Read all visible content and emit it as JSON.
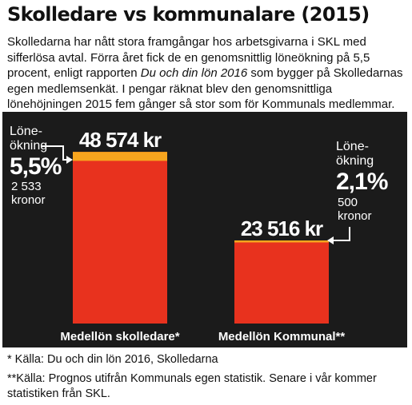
{
  "title": "Skolledare vs kommunalare (2015)",
  "intro": {
    "p1": "Skolledarna har nått stora framgångar hos arbetsgivarna i SKL med sifferlösa avtal. Förra året fick de en genomsnittlig löneökning på 5,5 procent, enligt rapporten ",
    "report": "Du och din lön 2016",
    "p2": " som bygger på Skolledarnas egen medlemsenkät. I pengar räknat blev den genomsnittliga lönehöjningen 2015 fem gånger så stor som för Kommunals medlemmar."
  },
  "colors": {
    "background": "#1b1b1b",
    "bar": "#e8321e",
    "increase": "#f7a51e",
    "text_on_chart": "#ffffff"
  },
  "chart_data": {
    "type": "bar",
    "categories": [
      "Medellön skolledare*",
      "Medellön Kommunal**"
    ],
    "values": [
      48574,
      23516
    ],
    "value_labels": [
      "48 574 kr",
      "23 516 kr"
    ],
    "increase_values": [
      2533,
      500
    ],
    "annotations": [
      {
        "heading_line1": "Löne-",
        "heading_line2": "ökning",
        "percent": "5,5%",
        "amount": "2 533",
        "unit": "kronor"
      },
      {
        "heading_line1": "Löne-",
        "heading_line2": "ökning",
        "percent": "2,1%",
        "amount": "500",
        "unit": "kronor"
      }
    ],
    "ylim": [
      0,
      52000
    ]
  },
  "footnotes": {
    "note1": "* Källa: Du och din lön 2016, Skolledarna",
    "note2_line1": "**Källa: Prognos utifrån Kommunals egen statistik. Senare i vår kommer",
    "note2_line2": "statistiken från SKL."
  }
}
